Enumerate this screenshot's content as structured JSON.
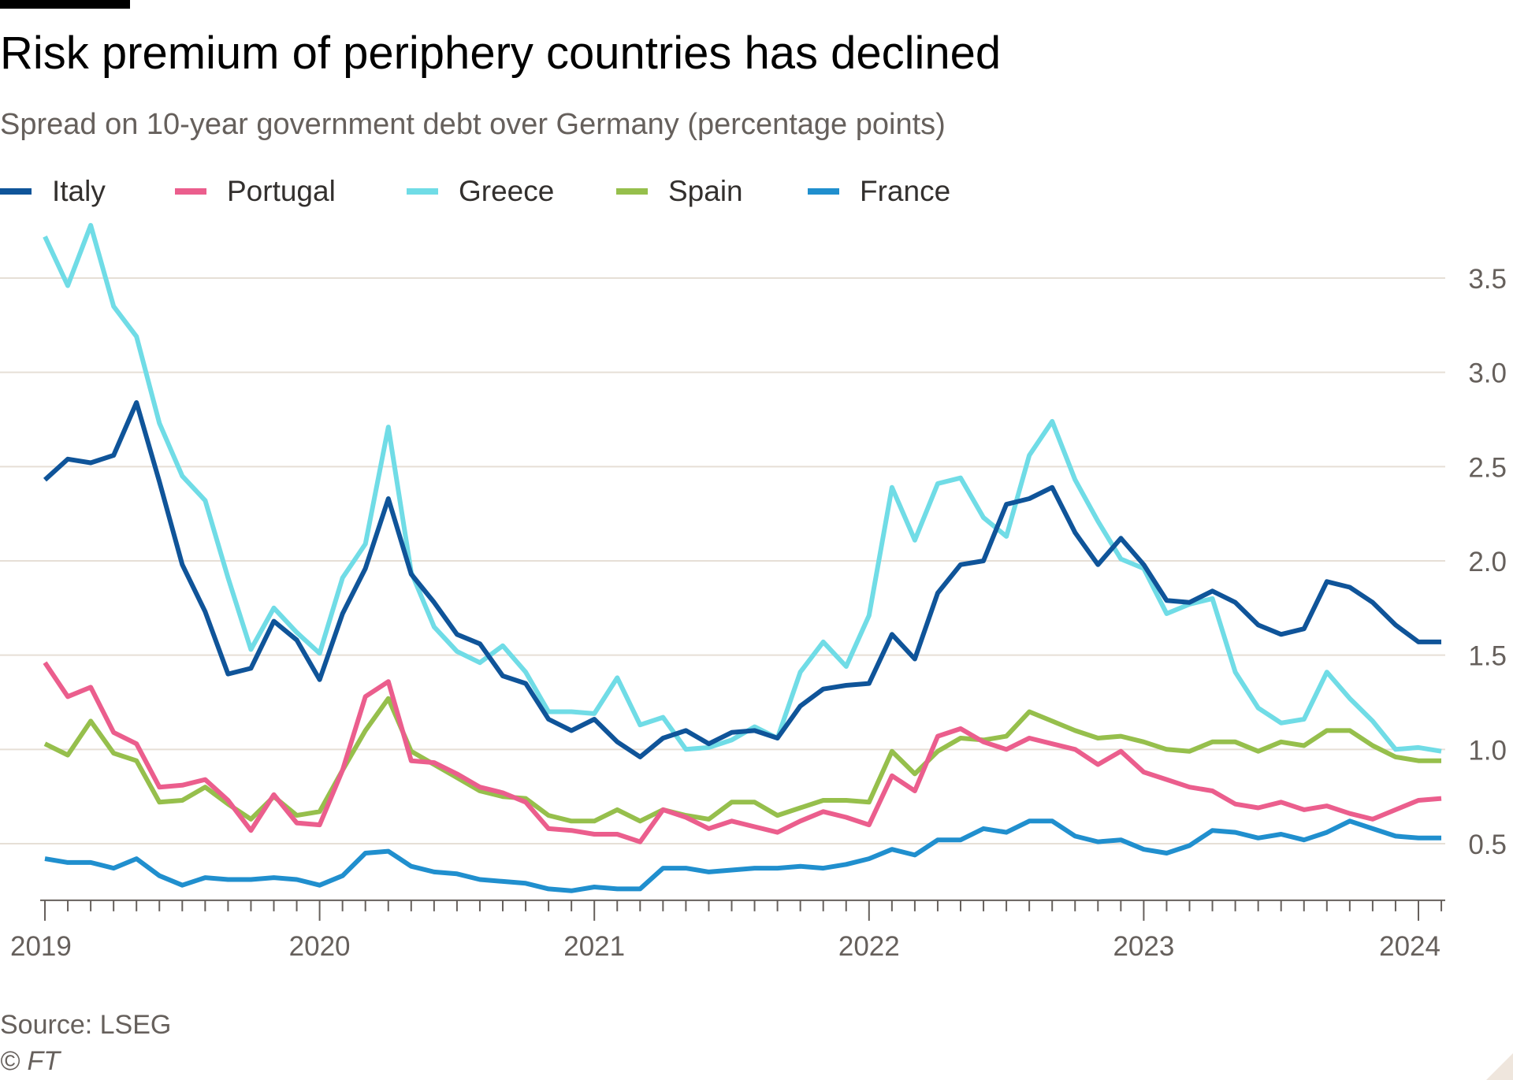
{
  "header": {
    "title": "Risk premium of periphery countries has declined",
    "subtitle": "Spread on 10-year government debt over Germany (percentage points)"
  },
  "footer": {
    "source": "Source: LSEG",
    "copyright": "© FT"
  },
  "colors": {
    "Italy": "#0f5499",
    "Portugal": "#eb5e8d",
    "Greece": "#70dce6",
    "Spain": "#96bf4c",
    "France": "#208fce",
    "gridline": "#e6dfd6",
    "axis": "#66605c"
  },
  "chart_data": {
    "type": "line",
    "title": "Risk premium of periphery countries has declined",
    "subtitle": "Spread on 10-year government debt over Germany (percentage points)",
    "x_start": "2019-01",
    "x_step": "month",
    "x_count": 62,
    "xlim": [
      "2019-01",
      "2024-02"
    ],
    "ylim": [
      0.25,
      3.85
    ],
    "yticks": [
      0.5,
      1.0,
      1.5,
      2.0,
      2.5,
      3.0,
      3.5
    ],
    "ytick_labels": [
      "0.5",
      "1.0",
      "1.5",
      "2.0",
      "2.5",
      "3.0",
      "3.5"
    ],
    "xticks": [
      "2019",
      "2020",
      "2021",
      "2022",
      "2023",
      "2024"
    ],
    "grid": true,
    "y_axis_position": "right",
    "legend_position": "top-left",
    "series": [
      {
        "name": "Italy",
        "values": [
          2.43,
          2.54,
          2.52,
          2.56,
          2.84,
          2.42,
          1.98,
          1.73,
          1.4,
          1.43,
          1.68,
          1.58,
          1.37,
          1.72,
          1.96,
          2.33,
          1.93,
          1.78,
          1.61,
          1.56,
          1.39,
          1.35,
          1.16,
          1.1,
          1.16,
          1.04,
          0.96,
          1.06,
          1.1,
          1.03,
          1.09,
          1.1,
          1.06,
          1.23,
          1.32,
          1.34,
          1.35,
          1.61,
          1.48,
          1.83,
          1.98,
          2.0,
          2.3,
          2.33,
          2.39,
          2.15,
          1.98,
          2.12,
          1.98,
          1.79,
          1.78,
          1.84,
          1.78,
          1.66,
          1.61,
          1.64,
          1.89,
          1.86,
          1.78,
          1.66,
          1.57,
          1.57
        ]
      },
      {
        "name": "Portugal",
        "values": [
          1.46,
          1.28,
          1.33,
          1.09,
          1.03,
          0.8,
          0.81,
          0.84,
          0.73,
          0.57,
          0.76,
          0.61,
          0.6,
          0.89,
          1.28,
          1.36,
          0.94,
          0.93,
          0.87,
          0.8,
          0.77,
          0.72,
          0.58,
          0.57,
          0.55,
          0.55,
          0.51,
          0.68,
          0.64,
          0.58,
          0.62,
          0.59,
          0.56,
          0.62,
          0.67,
          0.64,
          0.6,
          0.86,
          0.78,
          1.07,
          1.11,
          1.04,
          1.0,
          1.06,
          1.03,
          1.0,
          0.92,
          0.99,
          0.88,
          0.84,
          0.8,
          0.78,
          0.71,
          0.69,
          0.72,
          0.68,
          0.7,
          0.66,
          0.63,
          0.68,
          0.73,
          0.74
        ]
      },
      {
        "name": "Greece",
        "values": [
          3.72,
          3.46,
          3.78,
          3.35,
          3.19,
          2.73,
          2.45,
          2.32,
          1.91,
          1.53,
          1.75,
          1.62,
          1.51,
          1.91,
          2.09,
          2.71,
          1.94,
          1.65,
          1.52,
          1.46,
          1.55,
          1.41,
          1.2,
          1.2,
          1.19,
          1.38,
          1.13,
          1.17,
          1.0,
          1.01,
          1.05,
          1.12,
          1.06,
          1.41,
          1.57,
          1.44,
          1.71,
          2.39,
          2.11,
          2.41,
          2.44,
          2.23,
          2.13,
          2.56,
          2.74,
          2.43,
          2.21,
          2.01,
          1.96,
          1.72,
          1.77,
          1.8,
          1.41,
          1.22,
          1.14,
          1.16,
          1.41,
          1.27,
          1.15,
          1.0,
          1.01,
          0.99
        ]
      },
      {
        "name": "Spain",
        "values": [
          1.03,
          0.97,
          1.15,
          0.98,
          0.94,
          0.72,
          0.73,
          0.8,
          0.71,
          0.63,
          0.75,
          0.65,
          0.67,
          0.89,
          1.1,
          1.27,
          0.99,
          0.92,
          0.85,
          0.78,
          0.75,
          0.74,
          0.65,
          0.62,
          0.62,
          0.68,
          0.62,
          0.68,
          0.65,
          0.63,
          0.72,
          0.72,
          0.65,
          0.69,
          0.73,
          0.73,
          0.72,
          0.99,
          0.87,
          0.99,
          1.06,
          1.05,
          1.07,
          1.2,
          1.15,
          1.1,
          1.06,
          1.07,
          1.04,
          1.0,
          0.99,
          1.04,
          1.04,
          0.99,
          1.04,
          1.02,
          1.1,
          1.1,
          1.02,
          0.96,
          0.94,
          0.94
        ]
      },
      {
        "name": "France",
        "values": [
          0.42,
          0.4,
          0.4,
          0.37,
          0.42,
          0.33,
          0.28,
          0.32,
          0.31,
          0.31,
          0.32,
          0.31,
          0.28,
          0.33,
          0.45,
          0.46,
          0.38,
          0.35,
          0.34,
          0.31,
          0.3,
          0.29,
          0.26,
          0.25,
          0.27,
          0.26,
          0.26,
          0.37,
          0.37,
          0.35,
          0.36,
          0.37,
          0.37,
          0.38,
          0.37,
          0.39,
          0.42,
          0.47,
          0.44,
          0.52,
          0.52,
          0.58,
          0.56,
          0.62,
          0.62,
          0.54,
          0.51,
          0.52,
          0.47,
          0.45,
          0.49,
          0.57,
          0.56,
          0.53,
          0.55,
          0.52,
          0.56,
          0.62,
          0.58,
          0.54,
          0.53,
          0.53
        ]
      }
    ]
  }
}
